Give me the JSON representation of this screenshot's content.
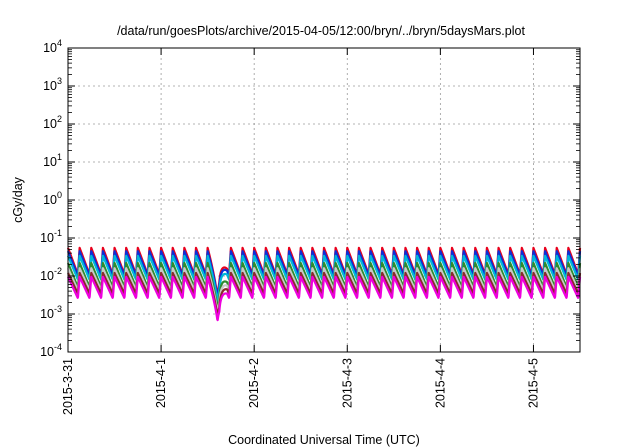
{
  "chart_data": {
    "type": "line",
    "title": "/data/run/goesPlots/archive/2015-04-05/12:00/bryn/../bryn/5daysMars.plot",
    "xlabel": "Coordinated Universal Time (UTC)",
    "ylabel": "cGy/day",
    "yscale": "log",
    "ylim": [
      0.0001,
      10000
    ],
    "xlim": [
      "2015-03-31T00:00",
      "2015-04-05T12:00"
    ],
    "grid": true,
    "legend": "none",
    "x_ticks": [
      "2015-3-31",
      "2015-4-1",
      "2015-4-2",
      "2015-4-3",
      "2015-4-4",
      "2015-4-5"
    ],
    "y_ticks": [
      {
        "base": "10",
        "exp": "-4"
      },
      {
        "base": "10",
        "exp": "-3"
      },
      {
        "base": "10",
        "exp": "-2"
      },
      {
        "base": "10",
        "exp": "-1"
      },
      {
        "base": "10",
        "exp": "0"
      },
      {
        "base": "10",
        "exp": "1"
      },
      {
        "base": "10",
        "exp": "2"
      },
      {
        "base": "10",
        "exp": "3"
      },
      {
        "base": "10",
        "exp": "4"
      }
    ],
    "pattern": {
      "period_hours": 3,
      "dip": {
        "start": "2015-04-01T12:00",
        "min": "2015-04-01T15:00",
        "end": "2015-04-01T17:00",
        "factor": 0.12
      }
    },
    "series": [
      {
        "color": "#e8001c",
        "peak": 0.055,
        "trough": 0.011
      },
      {
        "color": "#0c2fd6",
        "peak": 0.045,
        "trough": 0.01
      },
      {
        "color": "#00b8d8",
        "peak": 0.034,
        "trough": 0.008
      },
      {
        "color": "#2e8b2e",
        "peak": 0.022,
        "trough": 0.005
      },
      {
        "color": "#c8c8c8",
        "peak": 0.016,
        "trough": 0.0042
      },
      {
        "color": "#8a2a2a",
        "peak": 0.012,
        "trough": 0.0034
      },
      {
        "color": "#ee00dd",
        "peak": 0.0095,
        "trough": 0.0026
      }
    ]
  }
}
